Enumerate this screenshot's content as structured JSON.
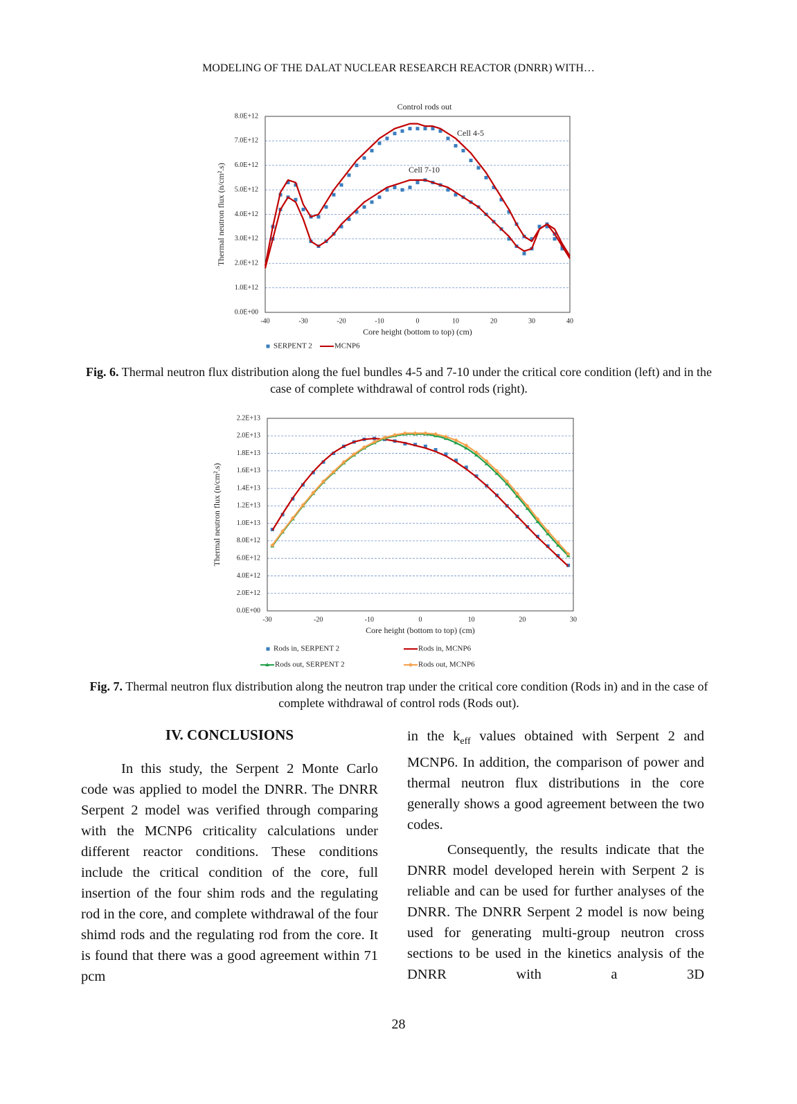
{
  "header": {
    "running_title": "MODELING OF THE DALAT NUCLEAR RESEARCH REACTOR (DNRR) WITH…"
  },
  "chart_data": [
    {
      "type": "line",
      "title": "Control rods out",
      "xlabel": "Core height (bottom to top) (cm)",
      "ylabel": "Thermal neutron flux (n/cm².s)",
      "xlim": [
        -40,
        40
      ],
      "xticks": [
        -40,
        -30,
        -20,
        -10,
        0,
        10,
        20,
        30,
        40
      ],
      "ylim": [
        0,
        8000000000000.0
      ],
      "yticks": [
        {
          "value": 0,
          "label": "0.0E+00"
        },
        {
          "value": 1000000000000.0,
          "label": "1.0E+12"
        },
        {
          "value": 2000000000000.0,
          "label": "2.0E+12"
        },
        {
          "value": 3000000000000.0,
          "label": "3.0E+12"
        },
        {
          "value": 4000000000000.0,
          "label": "4.0E+12"
        },
        {
          "value": 5000000000000.0,
          "label": "5.0E+12"
        },
        {
          "value": 6000000000000.0,
          "label": "6.0E+12"
        },
        {
          "value": 7000000000000.0,
          "label": "7.0E+12"
        },
        {
          "value": 8000000000000.0,
          "label": "8.0E+12"
        }
      ],
      "grid": true,
      "annotations": [
        "Cell 4-5",
        "Cell 7-10"
      ],
      "series": [
        {
          "name": "SERPENT 2",
          "color": "#3a7ebf",
          "marker": "square",
          "line": false,
          "x": [
            -38,
            -36,
            -34,
            -32,
            -30,
            -28,
            -26,
            -24,
            -22,
            -20,
            -18,
            -16,
            -14,
            -12,
            -10,
            -8,
            -6,
            -4,
            -2,
            0,
            2,
            4,
            6,
            8,
            10,
            12,
            14,
            16,
            18,
            20,
            22,
            24,
            26,
            28,
            30,
            32,
            34,
            36,
            38
          ],
          "values": [
            3500000000000.0,
            4800000000000.0,
            5300000000000.0,
            5200000000000.0,
            4200000000000.0,
            3900000000000.0,
            3900000000000.0,
            4300000000000.0,
            4800000000000.0,
            5200000000000.0,
            5600000000000.0,
            6000000000000.0,
            6300000000000.0,
            6600000000000.0,
            6900000000000.0,
            7100000000000.0,
            7300000000000.0,
            7400000000000.0,
            7500000000000.0,
            7500000000000.0,
            7500000000000.0,
            7500000000000.0,
            7400000000000.0,
            7100000000000.0,
            6800000000000.0,
            6600000000000.0,
            6200000000000.0,
            5900000000000.0,
            5500000000000.0,
            5100000000000.0,
            4600000000000.0,
            4100000000000.0,
            3600000000000.0,
            3100000000000.0,
            3000000000000.0,
            3500000000000.0,
            3600000000000.0,
            3200000000000.0,
            2700000000000.0
          ]
        },
        {
          "name": "MCNP6",
          "color": "#c00000",
          "line": true,
          "x": [
            -40,
            -38,
            -36,
            -34,
            -32,
            -30,
            -28,
            -26,
            -24,
            -22,
            -20,
            -18,
            -16,
            -14,
            -12,
            -10,
            -8,
            -6,
            -4,
            -2,
            0,
            2,
            4,
            6,
            8,
            10,
            12,
            14,
            16,
            18,
            20,
            22,
            24,
            26,
            28,
            30,
            32,
            34,
            36,
            38,
            40
          ],
          "values": [
            1900000000000.0,
            3500000000000.0,
            4900000000000.0,
            5400000000000.0,
            5300000000000.0,
            4400000000000.0,
            3900000000000.0,
            4000000000000.0,
            4500000000000.0,
            5000000000000.0,
            5400000000000.0,
            5800000000000.0,
            6200000000000.0,
            6500000000000.0,
            6800000000000.0,
            7100000000000.0,
            7300000000000.0,
            7500000000000.0,
            7600000000000.0,
            7700000000000.0,
            7700000000000.0,
            7600000000000.0,
            7600000000000.0,
            7500000000000.0,
            7300000000000.0,
            7100000000000.0,
            6800000000000.0,
            6500000000000.0,
            6100000000000.0,
            5700000000000.0,
            5200000000000.0,
            4700000000000.0,
            4200000000000.0,
            3600000000000.0,
            3100000000000.0,
            2900000000000.0,
            3400000000000.0,
            3600000000000.0,
            3400000000000.0,
            2800000000000.0,
            2300000000000.0
          ]
        },
        {
          "color": "#3a7ebf",
          "marker": "square",
          "line": false,
          "x": [
            -38,
            -36,
            -34,
            -32,
            -30,
            -28,
            -26,
            -24,
            -22,
            -20,
            -18,
            -16,
            -14,
            -12,
            -10,
            -8,
            -6,
            -4,
            -2,
            0,
            2,
            4,
            6,
            8,
            10,
            12,
            14,
            16,
            18,
            20,
            22,
            24,
            26,
            28,
            30,
            32,
            34,
            36,
            38
          ],
          "values": [
            3000000000000.0,
            4200000000000.0,
            4700000000000.0,
            4600000000000.0,
            4200000000000.0,
            2900000000000.0,
            2700000000000.0,
            2900000000000.0,
            3200000000000.0,
            3500000000000.0,
            3800000000000.0,
            4100000000000.0,
            4300000000000.0,
            4500000000000.0,
            4700000000000.0,
            5000000000000.0,
            5100000000000.0,
            5000000000000.0,
            5100000000000.0,
            5300000000000.0,
            5400000000000.0,
            5300000000000.0,
            5200000000000.0,
            5000000000000.0,
            4800000000000.0,
            4700000000000.0,
            4500000000000.0,
            4300000000000.0,
            4000000000000.0,
            3700000000000.0,
            3400000000000.0,
            3000000000000.0,
            2700000000000.0,
            2400000000000.0,
            2600000000000.0,
            3500000000000.0,
            3500000000000.0,
            3000000000000.0,
            2600000000000.0
          ]
        },
        {
          "color": "#c00000",
          "line": true,
          "x": [
            -40,
            -38,
            -36,
            -34,
            -32,
            -30,
            -28,
            -26,
            -24,
            -22,
            -20,
            -18,
            -16,
            -14,
            -12,
            -10,
            -8,
            -6,
            -4,
            -2,
            0,
            2,
            4,
            6,
            8,
            10,
            12,
            14,
            16,
            18,
            20,
            22,
            24,
            26,
            28,
            30,
            32,
            34,
            36,
            38,
            40
          ],
          "values": [
            1800000000000.0,
            3000000000000.0,
            4200000000000.0,
            4700000000000.0,
            4500000000000.0,
            3800000000000.0,
            2900000000000.0,
            2700000000000.0,
            2900000000000.0,
            3200000000000.0,
            3600000000000.0,
            3900000000000.0,
            4200000000000.0,
            4500000000000.0,
            4700000000000.0,
            4900000000000.0,
            5100000000000.0,
            5200000000000.0,
            5300000000000.0,
            5400000000000.0,
            5400000000000.0,
            5400000000000.0,
            5300000000000.0,
            5200000000000.0,
            5100000000000.0,
            4900000000000.0,
            4700000000000.0,
            4500000000000.0,
            4300000000000.0,
            4000000000000.0,
            3700000000000.0,
            3400000000000.0,
            3100000000000.0,
            2700000000000.0,
            2500000000000.0,
            2600000000000.0,
            3400000000000.0,
            3600000000000.0,
            3200000000000.0,
            2700000000000.0,
            2200000000000.0
          ]
        }
      ]
    },
    {
      "type": "line",
      "xlabel": "Core height (bottom to top) (cm)",
      "ylabel": "Thermal neutron flux (n/cm².s)",
      "xlim": [
        -30,
        30
      ],
      "xticks": [
        -30,
        -20,
        -10,
        0,
        10,
        20,
        30
      ],
      "ylim": [
        0,
        22000000000000.0
      ],
      "yticks": [
        {
          "value": 0,
          "label": "0.0E+00"
        },
        {
          "value": 2000000000000.0,
          "label": "2.0E+12"
        },
        {
          "value": 4000000000000.0,
          "label": "4.0E+12"
        },
        {
          "value": 6000000000000.0,
          "label": "6.0E+12"
        },
        {
          "value": 8000000000000.0,
          "label": "8.0E+12"
        },
        {
          "value": 10000000000000.0,
          "label": "1.0E+13"
        },
        {
          "value": 12000000000000.0,
          "label": "1.2E+13"
        },
        {
          "value": 14000000000000.0,
          "label": "1.4E+13"
        },
        {
          "value": 16000000000000.0,
          "label": "1.6E+13"
        },
        {
          "value": 18000000000000.0,
          "label": "1.8E+13"
        },
        {
          "value": 20000000000000.0,
          "label": "2.0E+13"
        },
        {
          "value": 22000000000000.0,
          "label": "2.2E+13"
        }
      ],
      "grid": true,
      "series": [
        {
          "name": "Rods in, SERPENT 2",
          "color": "#3a7ebf",
          "marker": "square",
          "line": false,
          "x": [
            -29,
            -27,
            -25,
            -23,
            -21,
            -19,
            -17,
            -15,
            -13,
            -11,
            -9,
            -7,
            -5,
            -3,
            -1,
            1,
            3,
            5,
            7,
            9,
            11,
            13,
            15,
            17,
            19,
            21,
            23,
            25,
            27,
            29
          ],
          "values": [
            9300000000000.0,
            11000000000000.0,
            12800000000000.0,
            14400000000000.0,
            15800000000000.0,
            17000000000000.0,
            18000000000000.0,
            18800000000000.0,
            19300000000000.0,
            19600000000000.0,
            19700000000000.0,
            19600000000000.0,
            19400000000000.0,
            19100000000000.0,
            19000000000000.0,
            18800000000000.0,
            18400000000000.0,
            17900000000000.0,
            17200000000000.0,
            16400000000000.0,
            15400000000000.0,
            14300000000000.0,
            13200000000000.0,
            12000000000000.0,
            10800000000000.0,
            9600000000000.0,
            8500000000000.0,
            7400000000000.0,
            6300000000000.0,
            5200000000000.0
          ]
        },
        {
          "name": "Rods in, MCNP6",
          "color": "#c00000",
          "line": true,
          "x": [
            -29,
            -27,
            -25,
            -23,
            -21,
            -19,
            -17,
            -15,
            -13,
            -11,
            -9,
            -7,
            -5,
            -3,
            -1,
            1,
            3,
            5,
            7,
            9,
            11,
            13,
            15,
            17,
            19,
            21,
            23,
            25,
            27,
            29
          ],
          "values": [
            9200000000000.0,
            11100000000000.0,
            12900000000000.0,
            14500000000000.0,
            15900000000000.0,
            17100000000000.0,
            18100000000000.0,
            18800000000000.0,
            19300000000000.0,
            19600000000000.0,
            19700000000000.0,
            19600000000000.0,
            19400000000000.0,
            19200000000000.0,
            18900000000000.0,
            18600000000000.0,
            18200000000000.0,
            17700000000000.0,
            17000000000000.0,
            16200000000000.0,
            15300000000000.0,
            14300000000000.0,
            13200000000000.0,
            12000000000000.0,
            10800000000000.0,
            9600000000000.0,
            8400000000000.0,
            7300000000000.0,
            6200000000000.0,
            5100000000000.0
          ]
        },
        {
          "name": "Rods out, SERPENT 2",
          "color": "#22a04b",
          "marker": "triangle",
          "line": true,
          "x": [
            -29,
            -27,
            -25,
            -23,
            -21,
            -19,
            -17,
            -15,
            -13,
            -11,
            -9,
            -7,
            -5,
            -3,
            -1,
            1,
            3,
            5,
            7,
            9,
            11,
            13,
            15,
            17,
            19,
            21,
            23,
            25,
            27,
            29
          ],
          "values": [
            7400000000000.0,
            9000000000000.0,
            10500000000000.0,
            12000000000000.0,
            13400000000000.0,
            14700000000000.0,
            15800000000000.0,
            16900000000000.0,
            17800000000000.0,
            18600000000000.0,
            19200000000000.0,
            19700000000000.0,
            20000000000000.0,
            20200000000000.0,
            20200000000000.0,
            20200000000000.0,
            20000000000000.0,
            19700000000000.0,
            19200000000000.0,
            18600000000000.0,
            17800000000000.0,
            16800000000000.0,
            15700000000000.0,
            14500000000000.0,
            13100000000000.0,
            11700000000000.0,
            10200000000000.0,
            8800000000000.0,
            7500000000000.0,
            6300000000000.0
          ]
        },
        {
          "name": "Rods out, MCNP6",
          "color": "#f5a04a",
          "marker": "diamond",
          "line": true,
          "x": [
            -29,
            -27,
            -25,
            -23,
            -21,
            -19,
            -17,
            -15,
            -13,
            -11,
            -9,
            -7,
            -5,
            -3,
            -1,
            1,
            3,
            5,
            7,
            9,
            11,
            13,
            15,
            17,
            19,
            21,
            23,
            25,
            27,
            29
          ],
          "values": [
            7500000000000.0,
            9100000000000.0,
            10600000000000.0,
            12100000000000.0,
            13500000000000.0,
            14800000000000.0,
            15900000000000.0,
            17000000000000.0,
            17900000000000.0,
            18700000000000.0,
            19300000000000.0,
            19800000000000.0,
            20100000000000.0,
            20300000000000.0,
            20300000000000.0,
            20300000000000.0,
            20200000000000.0,
            19900000000000.0,
            19500000000000.0,
            18900000000000.0,
            18100000000000.0,
            17100000000000.0,
            16000000000000.0,
            14800000000000.0,
            13400000000000.0,
            12000000000000.0,
            10500000000000.0,
            9100000000000.0,
            7800000000000.0,
            6500000000000.0
          ]
        }
      ]
    }
  ],
  "figures": [
    {
      "label": "Fig. 6.",
      "caption": "Thermal neutron flux distribution along the fuel bundles 4-5 and 7-10 under the critical core condition (left) and in the case of complete withdrawal of control rods (right)."
    },
    {
      "label": "Fig. 7.",
      "caption": "Thermal neutron flux distribution along the neutron trap under the critical core condition (Rods in) and in the case of complete withdrawal of control rods (Rods out)."
    }
  ],
  "section": {
    "heading": "IV. CONCLUSIONS",
    "paragraphs": [
      {
        "text": "In this study, the Serpent 2 Monte Carlo code was applied to model the DNRR. The DNRR Serpent 2 model was verified through comparing with the MCNP6 criticality calculations under different reactor conditions. These conditions include the critical condition of the core, full insertion of the four shim rods and the regulating rod in the core, and complete withdrawal of the four shimd rods and the regulating rod from the core. It is found that there was a good agreement within 71 pcm"
      },
      {
        "parts": [
          "in the k",
          "eff",
          " values obtained with Serpent 2 and MCNP6. In addition, the comparison of power and thermal neutron flux distributions in the core generally shows a good agreement between the two codes."
        ]
      },
      {
        "text": "Consequently, the results indicate that the DNRR model developed herein with Serpent 2 is reliable and can be used for further analyses of the DNRR. The DNRR Serpent 2 model is now being used for generating multi-group neutron cross sections to be used in the kinetics analysis of the DNRR with a 3D"
      }
    ]
  },
  "page_number": "28"
}
